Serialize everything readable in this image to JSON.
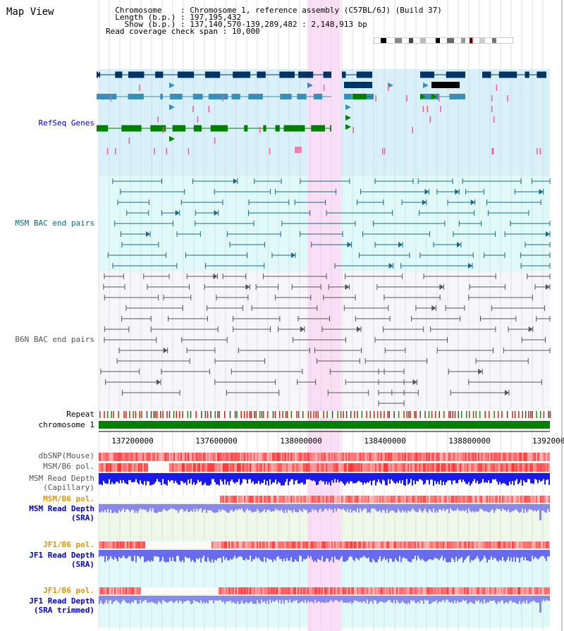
{
  "title": "Map View",
  "info": {
    "chromosome_key": "Chromosome",
    "chromosome_value": "Chromosome 1, reference assembly (C57BL/6J) (Build 37)",
    "length_key": "Length (b.p.)",
    "length_value": "197,195,432",
    "show_key": "Show (b.p.)",
    "show_value": "137,140,570-139,289,482 : 2,148,913 bp",
    "coverage_key": "Read coverage check span",
    "coverage_value": "10,000"
  },
  "tracks": {
    "refseq": "RefSeq Genes",
    "msm_bac": "MSM BAC end pairs",
    "b6n_bac": "B6N BAC end pairs",
    "repeat": "Repeat",
    "chromosome": "chromosome 1",
    "dbsnp": "dbSNP(Mouse)",
    "msm_b6_pol": "MSM/B6 pol.",
    "msm_depth_cap_1": "MSM Read Depth",
    "msm_depth_cap_2": "(Capillary)",
    "msm_b6_pol_sra": "MSM/B6 pol.",
    "msm_depth_sra_1": "MSM Read Depth",
    "msm_depth_sra_2": "(SRA)",
    "jf1_b6_pol": "JF1/B6 pol.",
    "jf1_depth_sra_1": "JF1 Read Depth",
    "jf1_depth_sra_2": "(SRA)",
    "jf1_b6_pol_trim": "JF1/B6 pol.",
    "jf1_depth_trim_1": "JF1 Read Depth",
    "jf1_depth_trim_2": "(SRA trimmed)"
  },
  "axis": {
    "ticks": [
      "137200000",
      "137600000",
      "138000000",
      "138400000",
      "138800000",
      "1392000"
    ]
  },
  "colors": {
    "highlight": "#fadcf5",
    "refseq_bg": "#d8f0f8",
    "msm_bac_bg": "#e0fafa",
    "chromosome_bar": "#008000",
    "depth_capillary": "#1a1aee",
    "depth_sra": "#8888ee",
    "label_blue": "#0000cc",
    "label_teal": "#006a80",
    "label_gray": "#555555",
    "label_orange": "#e69500"
  }
}
